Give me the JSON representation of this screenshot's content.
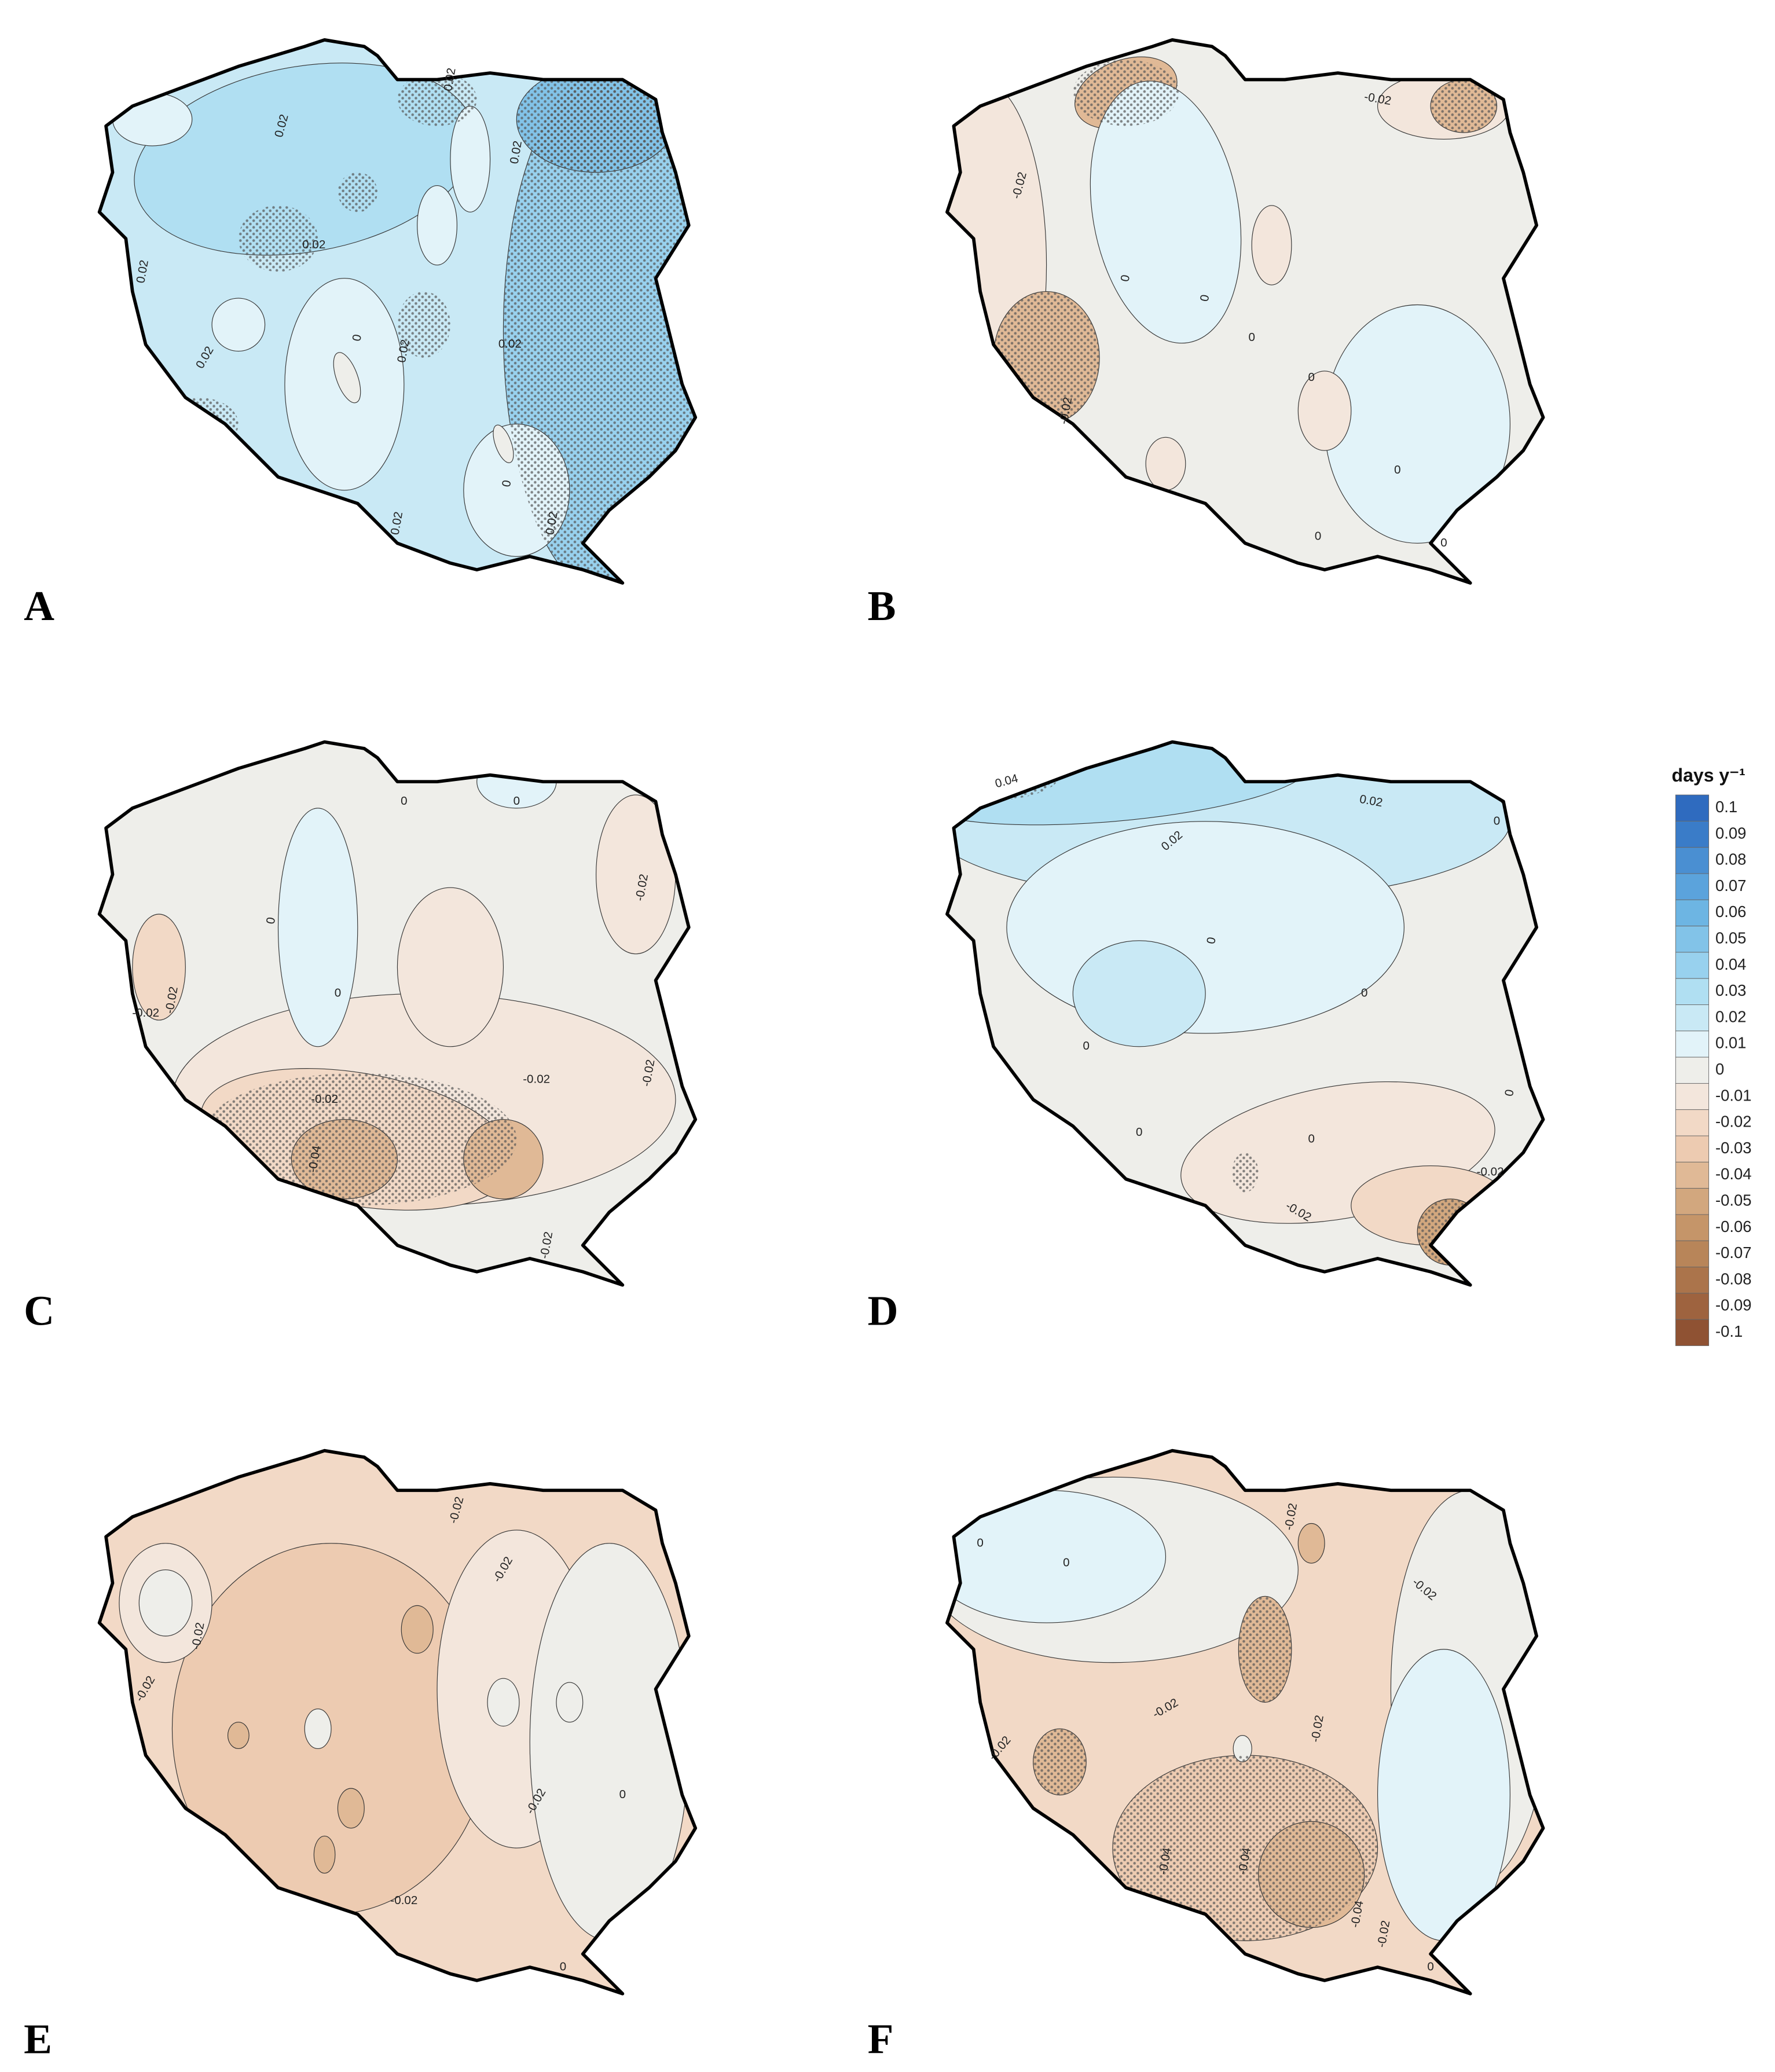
{
  "panels": [
    {
      "label": "A",
      "contour_labels": [
        "0.02",
        "0.02",
        "0.02",
        "0.02",
        "0.02",
        "0.02",
        "0.02",
        "0.02",
        "0",
        "0",
        "0.02",
        "0.02"
      ]
    },
    {
      "label": "B",
      "contour_labels": [
        "-0.02",
        "-0.02",
        "0",
        "0",
        "0",
        "0",
        "-0.02",
        "0",
        "0",
        "0"
      ]
    },
    {
      "label": "C",
      "contour_labels": [
        "0",
        "0",
        "0",
        "0",
        "-0.02",
        "-0.02",
        "-0.02",
        "-0.02",
        "-0.02",
        "-0.02",
        "-0.04",
        "-0.02"
      ]
    },
    {
      "label": "D",
      "contour_labels": [
        "0.04",
        "0.02",
        "0.02",
        "0",
        "0",
        "0",
        "0",
        "0",
        "0",
        "-0.02",
        "-0.02",
        "0"
      ]
    },
    {
      "label": "E",
      "contour_labels": [
        "-0.02",
        "-0.02",
        "-0.02",
        "-0.02",
        "-0.02",
        "0",
        "-0.02",
        "0"
      ]
    },
    {
      "label": "F",
      "contour_labels": [
        "0",
        "0",
        "-0.02",
        "-0.02",
        "-0.02",
        "-0.02",
        "-0.02",
        "-0.04",
        "-0.04",
        "-0.04",
        "-0.02",
        "0"
      ]
    }
  ],
  "legend": {
    "title": "days y⁻¹",
    "items": [
      {
        "label": "0.1",
        "color": "#2f6bbf"
      },
      {
        "label": "0.09",
        "color": "#3a7cc8"
      },
      {
        "label": "0.08",
        "color": "#4a8fd2"
      },
      {
        "label": "0.07",
        "color": "#5ba3dc"
      },
      {
        "label": "0.06",
        "color": "#6db5e3"
      },
      {
        "label": "0.05",
        "color": "#82c3e8"
      },
      {
        "label": "0.04",
        "color": "#98d1ee"
      },
      {
        "label": "0.03",
        "color": "#b0dff2"
      },
      {
        "label": "0.02",
        "color": "#c9e9f5"
      },
      {
        "label": "0.01",
        "color": "#e2f3f9"
      },
      {
        "label": "0",
        "color": "#eeeeea"
      },
      {
        "label": "-0.01",
        "color": "#f3e6dc"
      },
      {
        "label": "-0.02",
        "color": "#f2d9c6"
      },
      {
        "label": "-0.03",
        "color": "#edcbb1"
      },
      {
        "label": "-0.04",
        "color": "#e0b996"
      },
      {
        "label": "-0.05",
        "color": "#d2a77e"
      },
      {
        "label": "-0.06",
        "color": "#c59569"
      },
      {
        "label": "-0.07",
        "color": "#b88559"
      },
      {
        "label": "-0.08",
        "color": "#ab744b"
      },
      {
        "label": "-0.09",
        "color": "#9e633f"
      },
      {
        "label": "-0.1",
        "color": "#8f5233"
      }
    ]
  }
}
